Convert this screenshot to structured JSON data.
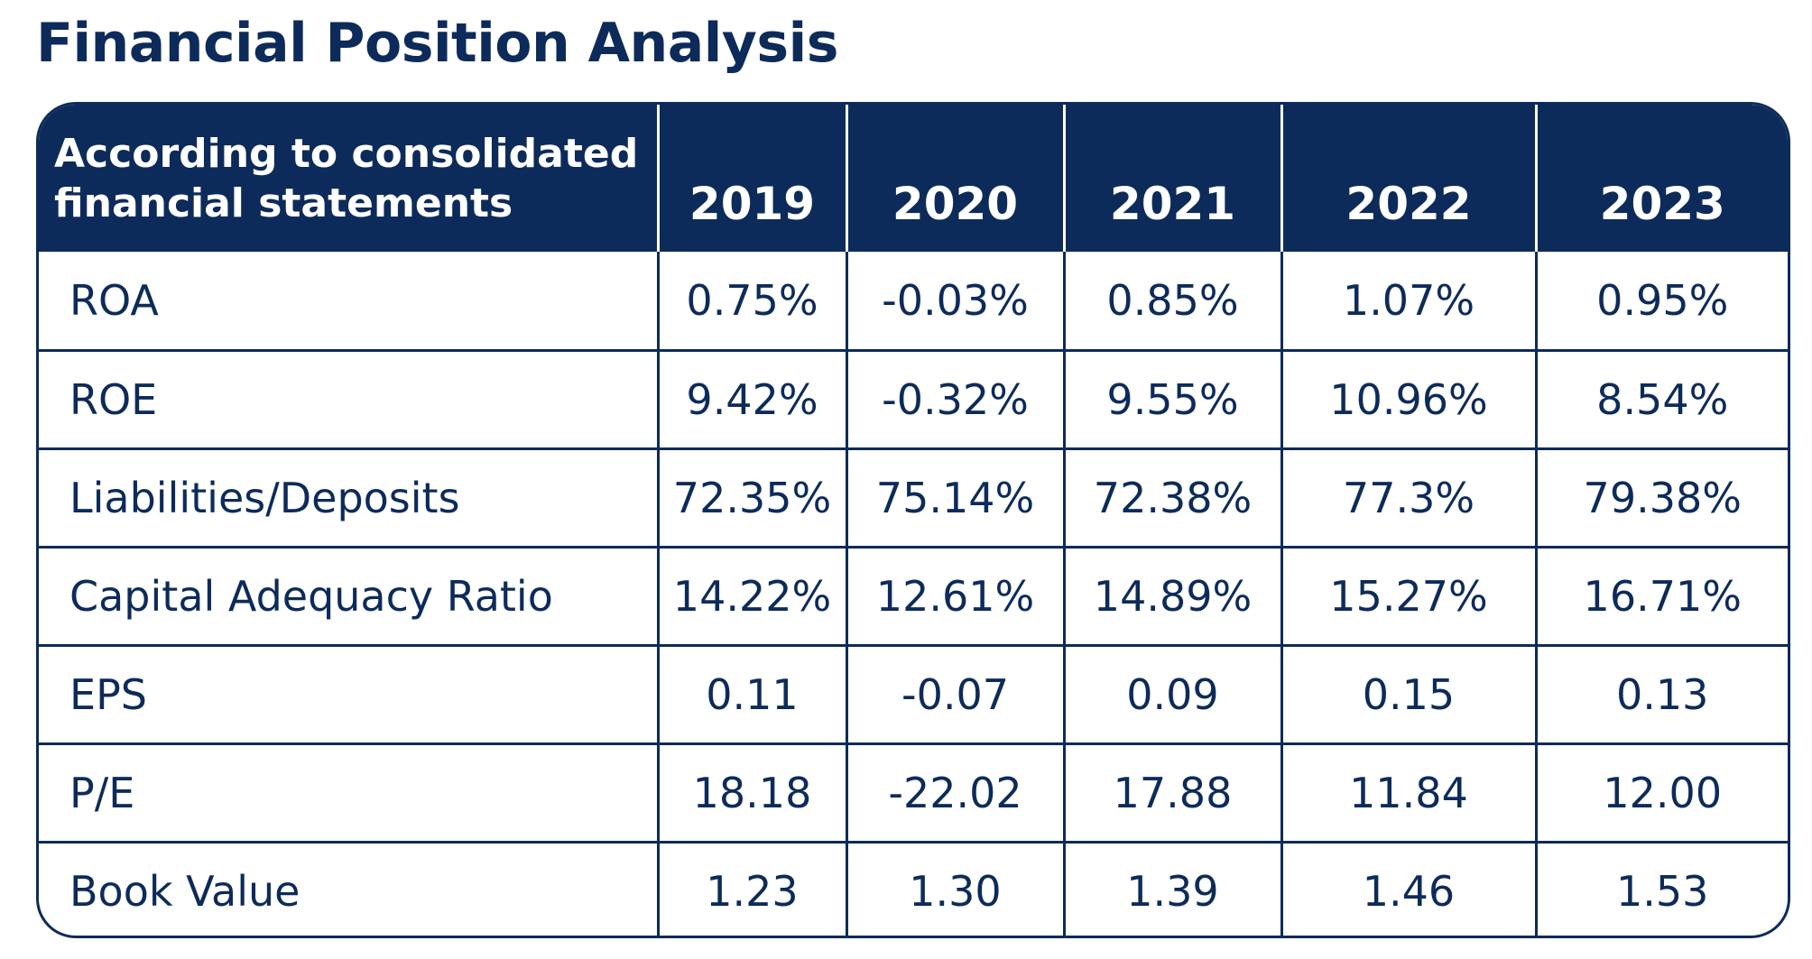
{
  "title": "Financial Position Analysis",
  "table": {
    "header_label": "According to consolidated financial statements",
    "years": [
      "2019",
      "2020",
      "2021",
      "2022",
      "2023"
    ],
    "rows": [
      {
        "label": "ROA",
        "values": [
          "0.75%",
          "-0.03%",
          "0.85%",
          "1.07%",
          "0.95%"
        ]
      },
      {
        "label": "ROE",
        "values": [
          "9.42%",
          "-0.32%",
          "9.55%",
          "10.96%",
          "8.54%"
        ]
      },
      {
        "label": "Liabilities/Deposits",
        "values": [
          "72.35%",
          "75.14%",
          "72.38%",
          "77.3%",
          "79.38%"
        ]
      },
      {
        "label": "Capital Adequacy Ratio",
        "values": [
          "14.22%",
          "12.61%",
          "14.89%",
          "15.27%",
          "16.71%"
        ]
      },
      {
        "label": "EPS",
        "values": [
          "0.11",
          "-0.07",
          "0.09",
          "0.15",
          "0.13"
        ]
      },
      {
        "label": "P/E",
        "values": [
          "18.18",
          "-22.02",
          "17.88",
          "11.84",
          "12.00"
        ]
      },
      {
        "label": "Book Value",
        "values": [
          "1.23",
          "1.30",
          "1.39",
          "1.46",
          "1.53"
        ]
      }
    ]
  },
  "colors": {
    "navy": "#0d2b5a",
    "background": "#ffffff"
  }
}
